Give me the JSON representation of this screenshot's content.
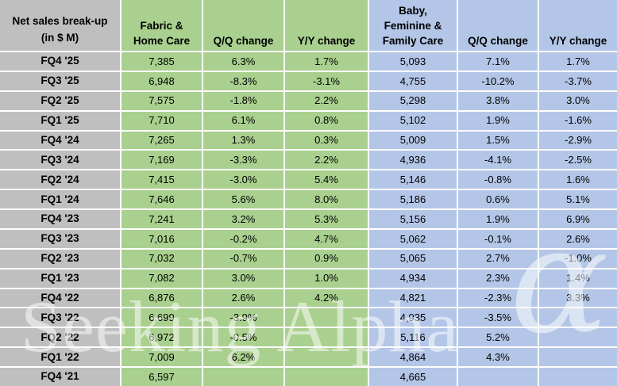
{
  "chart_data": {
    "type": "table",
    "title": "Net sales break-up (in $ M)",
    "corner_header": {
      "lines": [
        "Net sales break-up",
        "(in $ M)"
      ]
    },
    "column_headers": [
      {
        "lines": [
          "Fabric &",
          "Home Care"
        ],
        "group": "green"
      },
      {
        "lines": [
          "Q/Q change"
        ],
        "group": "green"
      },
      {
        "lines": [
          "Y/Y change"
        ],
        "group": "green"
      },
      {
        "lines": [
          "Baby,",
          "Feminine &",
          "Family Care"
        ],
        "group": "blue"
      },
      {
        "lines": [
          "Q/Q change"
        ],
        "group": "blue"
      },
      {
        "lines": [
          "Y/Y change"
        ],
        "group": "blue"
      }
    ],
    "rows": [
      {
        "quarter": "FQ4 '25",
        "cells": [
          "7,385",
          "6.3%",
          "1.7%",
          "5,093",
          "7.1%",
          "1.7%"
        ]
      },
      {
        "quarter": "FQ3 '25",
        "cells": [
          "6,948",
          "-8.3%",
          "-3.1%",
          "4,755",
          "-10.2%",
          "-3.7%"
        ]
      },
      {
        "quarter": "FQ2 '25",
        "cells": [
          "7,575",
          "-1.8%",
          "2.2%",
          "5,298",
          "3.8%",
          "3.0%"
        ]
      },
      {
        "quarter": "FQ1 '25",
        "cells": [
          "7,710",
          "6.1%",
          "0.8%",
          "5,102",
          "1.9%",
          "-1.6%"
        ]
      },
      {
        "quarter": "FQ4 '24",
        "cells": [
          "7,265",
          "1.3%",
          "0.3%",
          "5,009",
          "1.5%",
          "-2.9%"
        ]
      },
      {
        "quarter": "FQ3 '24",
        "cells": [
          "7,169",
          "-3.3%",
          "2.2%",
          "4,936",
          "-4.1%",
          "-2.5%"
        ]
      },
      {
        "quarter": "FQ2 '24",
        "cells": [
          "7,415",
          "-3.0%",
          "5.4%",
          "5,146",
          "-0.8%",
          "1.6%"
        ]
      },
      {
        "quarter": "FQ1 '24",
        "cells": [
          "7,646",
          "5.6%",
          "8.0%",
          "5,186",
          "0.6%",
          "5.1%"
        ]
      },
      {
        "quarter": "FQ4 '23",
        "cells": [
          "7,241",
          "3.2%",
          "5.3%",
          "5,156",
          "1.9%",
          "6.9%"
        ]
      },
      {
        "quarter": "FQ3 '23",
        "cells": [
          "7,016",
          "-0.2%",
          "4.7%",
          "5,062",
          "-0.1%",
          "2.6%"
        ]
      },
      {
        "quarter": "FQ2 '23",
        "cells": [
          "7,032",
          "-0.7%",
          "0.9%",
          "5,065",
          "2.7%",
          "-1.0%"
        ]
      },
      {
        "quarter": "FQ1 '23",
        "cells": [
          "7,082",
          "3.0%",
          "1.0%",
          "4,934",
          "2.3%",
          "1.4%"
        ]
      },
      {
        "quarter": "FQ4 '22",
        "cells": [
          "6,876",
          "2.6%",
          "4.2%",
          "4,821",
          "-2.3%",
          "3.3%"
        ]
      },
      {
        "quarter": "FQ3 '22",
        "cells": [
          "6,699",
          "-3.9%",
          "",
          "4,935",
          "-3.5%",
          ""
        ]
      },
      {
        "quarter": "FQ2 '22",
        "cells": [
          "6,972",
          "-0.5%",
          "",
          "5,116",
          "5.2%",
          ""
        ]
      },
      {
        "quarter": "FQ1 '22",
        "cells": [
          "7,009",
          "6.2%",
          "",
          "4,864",
          "4.3%",
          ""
        ]
      },
      {
        "quarter": "FQ4 '21",
        "cells": [
          "6,597",
          "",
          "",
          "4,665",
          "",
          ""
        ]
      }
    ]
  },
  "watermark": {
    "text": "Seeking Alpha",
    "alpha_symbol": "α"
  },
  "colors": {
    "green_fill": "#A9D08E",
    "blue_fill": "#B4C6E7",
    "gray_fill": "#BFBFBF",
    "gridline": "#FFFFFF",
    "text": "#000000"
  }
}
